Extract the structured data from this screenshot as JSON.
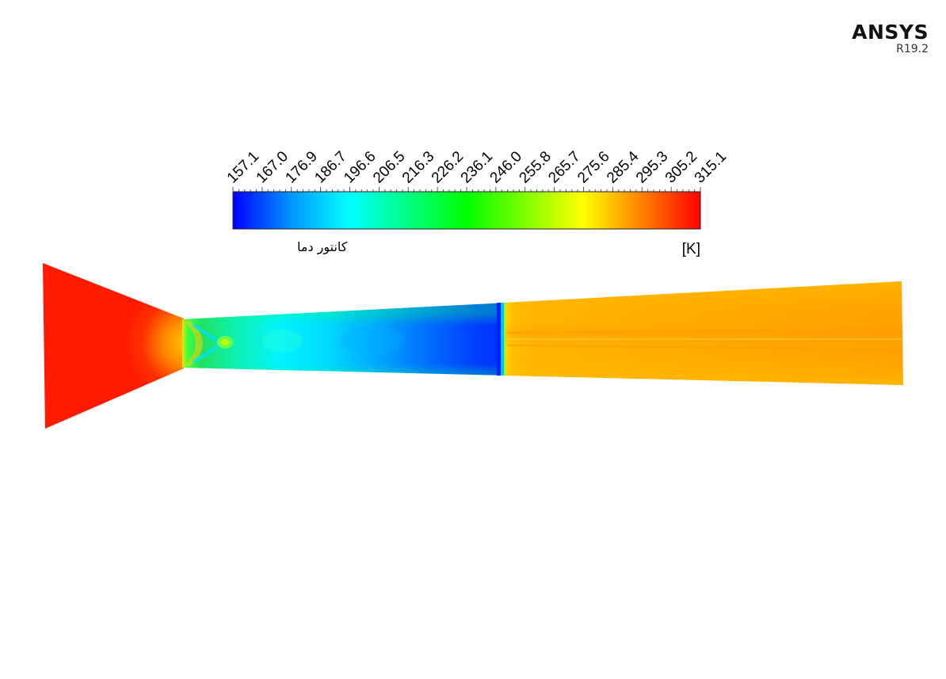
{
  "branding": {
    "product": "ANSYS",
    "version": "R19.2"
  },
  "legend": {
    "title": "کانتور دما",
    "unit": "[K]",
    "min": 157.1,
    "max": 315.1,
    "tick_labels": [
      "157.1",
      "167.0",
      "176.9",
      "186.7",
      "196.6",
      "206.5",
      "216.3",
      "226.2",
      "236.1",
      "246.0",
      "255.8",
      "265.7",
      "275.6",
      "285.4",
      "295.3",
      "305.2",
      "315.1"
    ],
    "colormap": [
      "#0000ff",
      "#0096ff",
      "#00ffff",
      "#00ff80",
      "#00ff00",
      "#80ff00",
      "#ffff00",
      "#ff8000",
      "#ff0000"
    ]
  },
  "contour": {
    "inlet_temperature_K": 315.1,
    "throat_min_temperature_K": 200,
    "pre_shock_temperature_K": 160,
    "post_shock_temperature_K": 290,
    "colors": {
      "inlet": "#ff1a00",
      "throat": "#20e060",
      "expansion_mid": "#00e8ff",
      "pre_shock": "#0038ff",
      "post_shock": "#ffb000",
      "outlet": "#ffa500"
    }
  }
}
